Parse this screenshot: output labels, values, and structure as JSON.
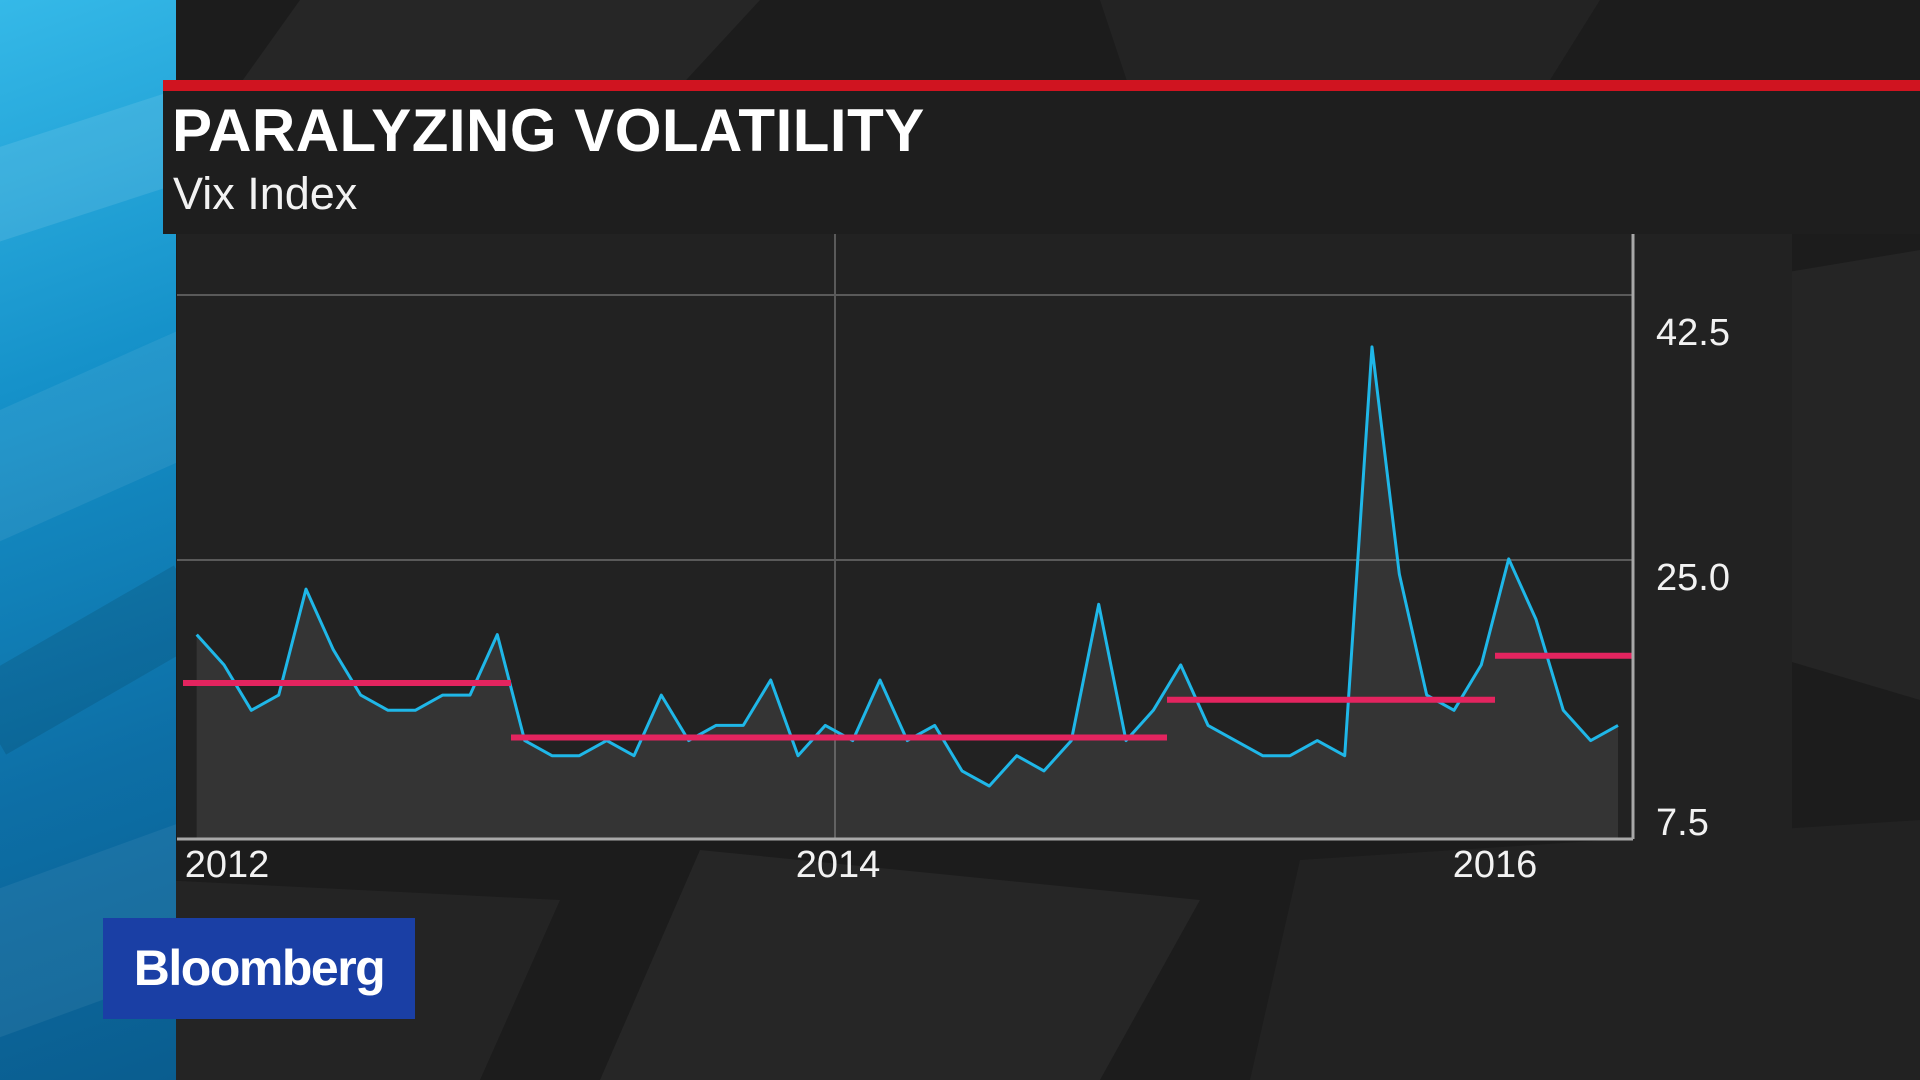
{
  "header": {
    "title": "PARALYZING VOLATILITY",
    "subtitle": "Vix Index",
    "accent_color": "#d01420"
  },
  "branding": {
    "logo_text": "Bloomberg",
    "logo_color": "#1a3fa5"
  },
  "colors": {
    "series": "#1fb7e8",
    "average": "#e3245f",
    "grid": "#5a5a5a",
    "axis": "#a8a8a8",
    "strip": "#1591c9"
  },
  "chart_data": {
    "type": "line",
    "title": "PARALYZING VOLATILITY",
    "subtitle": "Vix Index",
    "xlabel": "",
    "ylabel": "",
    "x_ticks": [
      "2012",
      "2014",
      "2016"
    ],
    "y_ticks": [
      "7.5",
      "25.0",
      "42.5"
    ],
    "ylim": [
      7.5,
      42.5
    ],
    "xlim": [
      "2012-01",
      "2016-05"
    ],
    "grid": true,
    "y_axis_side": "right",
    "series": [
      {
        "type": "line",
        "area_fill": true,
        "x": [
          "2012-01",
          "2012-02",
          "2012-03",
          "2012-04",
          "2012-05",
          "2012-06",
          "2012-07",
          "2012-08",
          "2012-09",
          "2012-10",
          "2012-11",
          "2012-12",
          "2013-01",
          "2013-02",
          "2013-03",
          "2013-04",
          "2013-05",
          "2013-06",
          "2013-07",
          "2013-08",
          "2013-09",
          "2013-10",
          "2013-11",
          "2013-12",
          "2014-01",
          "2014-02",
          "2014-03",
          "2014-04",
          "2014-05",
          "2014-06",
          "2014-07",
          "2014-08",
          "2014-09",
          "2014-10",
          "2014-11",
          "2014-12",
          "2015-01",
          "2015-02",
          "2015-03",
          "2015-04",
          "2015-05",
          "2015-06",
          "2015-07",
          "2015-08",
          "2015-09",
          "2015-10",
          "2015-11",
          "2015-12",
          "2016-01",
          "2016-02",
          "2016-03",
          "2016-04",
          "2016-05"
        ],
        "values": [
          21,
          19,
          16,
          17,
          24,
          20,
          17,
          16,
          16,
          17,
          17,
          21,
          14,
          13,
          13,
          14,
          13,
          17,
          14,
          15,
          15,
          18,
          13,
          15,
          14,
          18,
          14,
          15,
          12,
          11,
          13,
          12,
          14,
          23,
          14,
          16,
          19,
          15,
          14,
          13,
          13,
          14,
          13,
          40,
          25,
          17,
          16,
          19,
          26,
          22,
          16,
          14,
          15
        ]
      },
      {
        "type": "step",
        "segments": [
          {
            "from": "2012-01",
            "to": "2012-12",
            "value": 17.8
          },
          {
            "from": "2013-01",
            "to": "2014-12",
            "value": 14.2
          },
          {
            "from": "2015-01",
            "to": "2015-12",
            "value": 16.7
          },
          {
            "from": "2016-01",
            "to": "2016-05",
            "value": 19.6
          }
        ]
      }
    ]
  }
}
